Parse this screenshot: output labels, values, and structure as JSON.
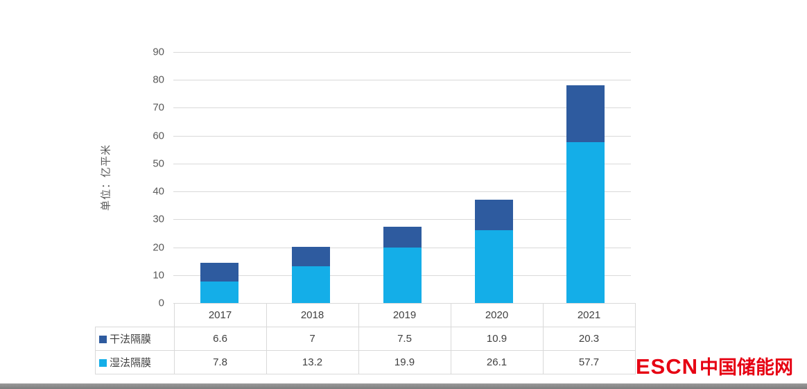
{
  "chart_data": {
    "type": "bar",
    "stacked": true,
    "categories": [
      "2017",
      "2018",
      "2019",
      "2020",
      "2021"
    ],
    "series": [
      {
        "name": "干法隔膜",
        "color": "#2e5b9f",
        "values": [
          6.6,
          7,
          7.5,
          10.9,
          20.3
        ]
      },
      {
        "name": "湿法隔膜",
        "color": "#14aee8",
        "values": [
          7.8,
          13.2,
          19.9,
          26.1,
          57.7
        ]
      }
    ],
    "title": "",
    "xlabel": "",
    "ylabel": "单位：亿平米",
    "ylim": [
      0,
      90
    ],
    "ytick_step": 10,
    "grid": true,
    "legend_position": "table-left",
    "grid_color": "#d9d9d9"
  },
  "footer": {
    "logo_escn": "ESCN",
    "logo_cn": "中国储能网",
    "logo_color": "#e60012"
  }
}
